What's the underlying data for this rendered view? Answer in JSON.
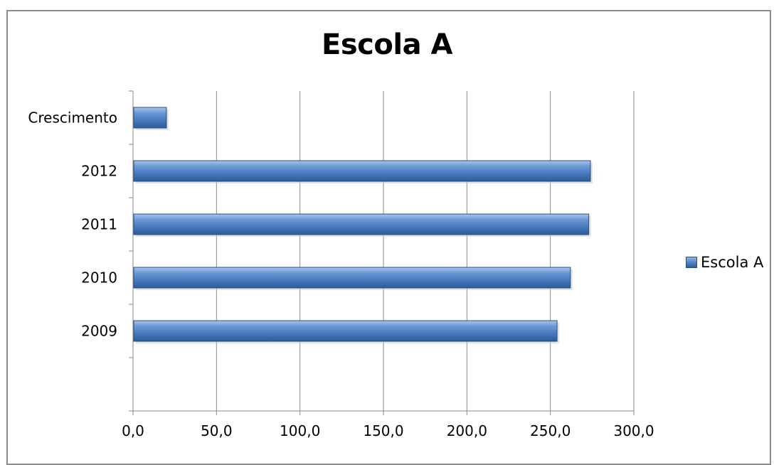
{
  "chart_data": {
    "type": "bar",
    "orientation": "horizontal",
    "title": "Escola A",
    "categories": [
      "2009",
      "2010",
      "2011",
      "2012",
      "Crescimento"
    ],
    "series": [
      {
        "name": "Escola A",
        "values": [
          254,
          262,
          273,
          274,
          20
        ]
      }
    ],
    "xlim": [
      0,
      300
    ],
    "xticks": [
      "0,0",
      "50,0",
      "100,0",
      "150,0",
      "200,0",
      "250,0",
      "300,0"
    ],
    "xlabel": "",
    "ylabel": "",
    "grid": "vertical",
    "legend_position": "right",
    "bar_color": "#4f81bd"
  }
}
